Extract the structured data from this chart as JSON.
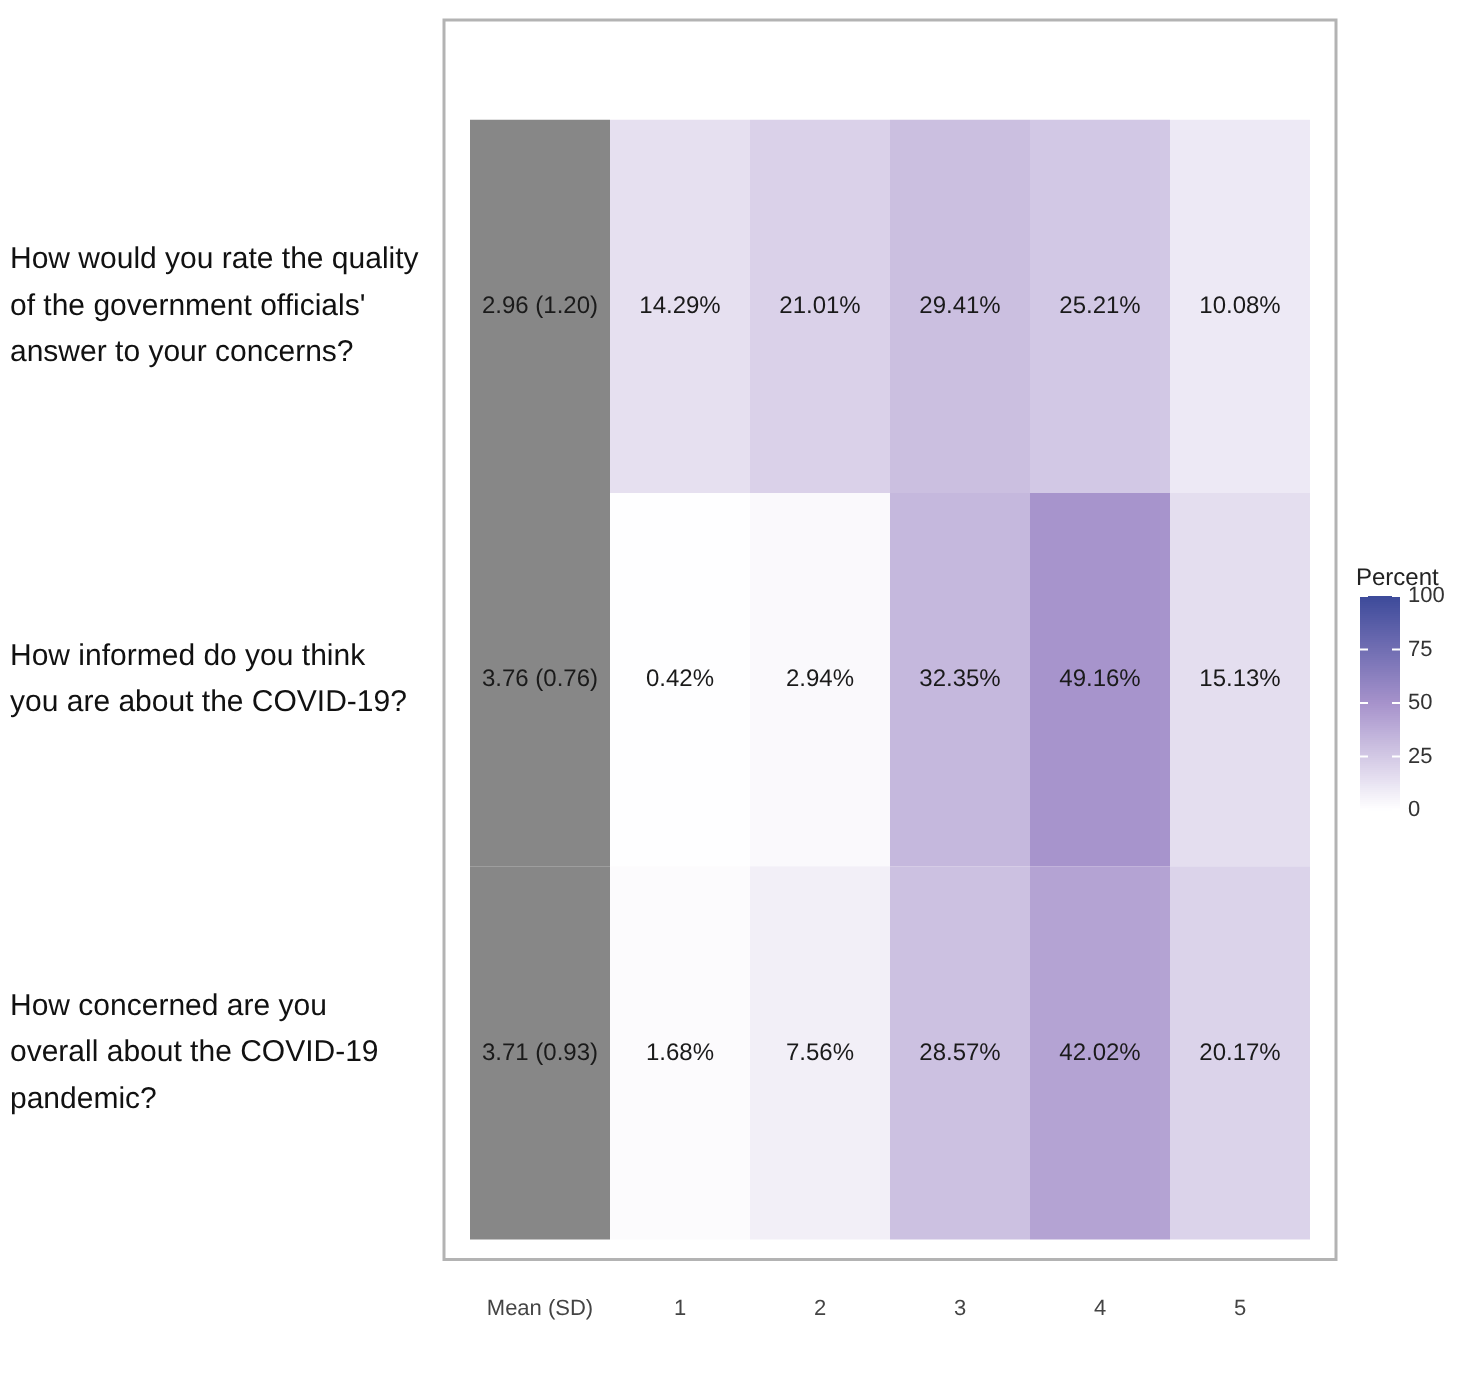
{
  "chart_data": {
    "type": "heatmap",
    "categories": [
      "Mean (SD)",
      "1",
      "2",
      "3",
      "4",
      "5"
    ],
    "y_categories": [
      "How would you rate the quality of the government officials' answer to your concerns?",
      "How informed do you think you are about the COVID-19?",
      "How concerned are you overall about the COVID-19 pandemic?"
    ],
    "cells": [
      [
        null,
        14.29,
        21.01,
        29.41,
        25.21,
        10.08
      ],
      [
        null,
        0.42,
        2.94,
        32.35,
        49.16,
        15.13
      ],
      [
        null,
        1.68,
        7.56,
        28.57,
        42.02,
        20.17
      ]
    ],
    "cell_labels": [
      [
        "2.96 (1.20)",
        "14.29%",
        "21.01%",
        "29.41%",
        "25.21%",
        "10.08%"
      ],
      [
        "3.76 (0.76)",
        "0.42%",
        "2.94%",
        "32.35%",
        "49.16%",
        "15.13%"
      ],
      [
        "3.71 (0.93)",
        "1.68%",
        "7.56%",
        "28.57%",
        "42.02%",
        "20.17%"
      ]
    ],
    "clabel": "Percent",
    "clim": [
      0,
      100
    ],
    "cticks": [
      0,
      25,
      50,
      75,
      100
    ]
  }
}
